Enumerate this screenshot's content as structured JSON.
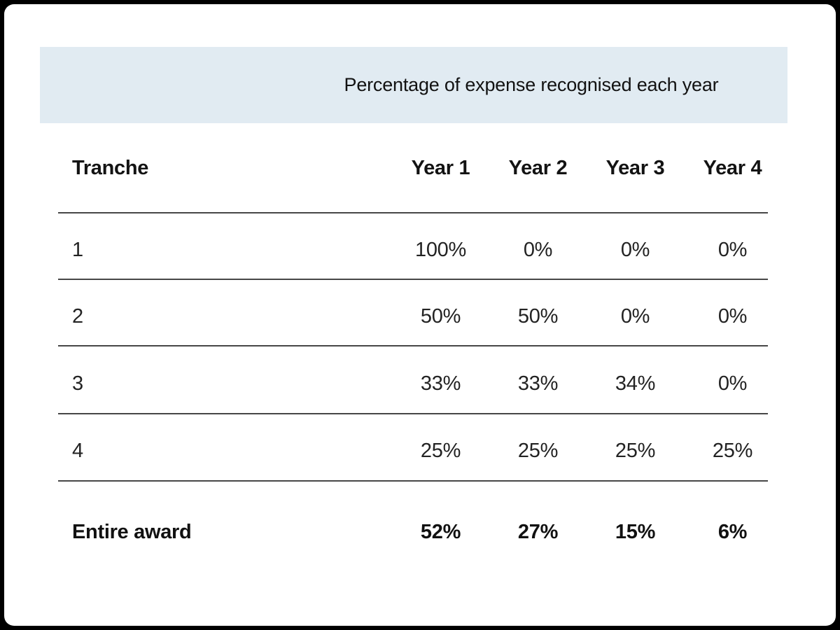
{
  "chart_data": {
    "type": "table",
    "title": "Percentage of expense recognised each year",
    "columns": [
      "Tranche",
      "Year 1",
      "Year 2",
      "Year 3",
      "Year 4"
    ],
    "rows": [
      [
        "1",
        "100%",
        "0%",
        "0%",
        "0%"
      ],
      [
        "2",
        "50%",
        "50%",
        "0%",
        "0%"
      ],
      [
        "3",
        "33%",
        "33%",
        "34%",
        "0%"
      ],
      [
        "4",
        "25%",
        "25%",
        "25%",
        "25%"
      ]
    ],
    "total_row": [
      "Entire award",
      "52%",
      "27%",
      "15%",
      "6%"
    ],
    "layout": {
      "legend": "none",
      "grid": "horizontal-rules-only"
    }
  },
  "colors": {
    "page_bg": "#000000",
    "card_bg": "#ffffff",
    "band_bg": "#e1ebf2",
    "rule": "#474747",
    "text": "#232323"
  }
}
